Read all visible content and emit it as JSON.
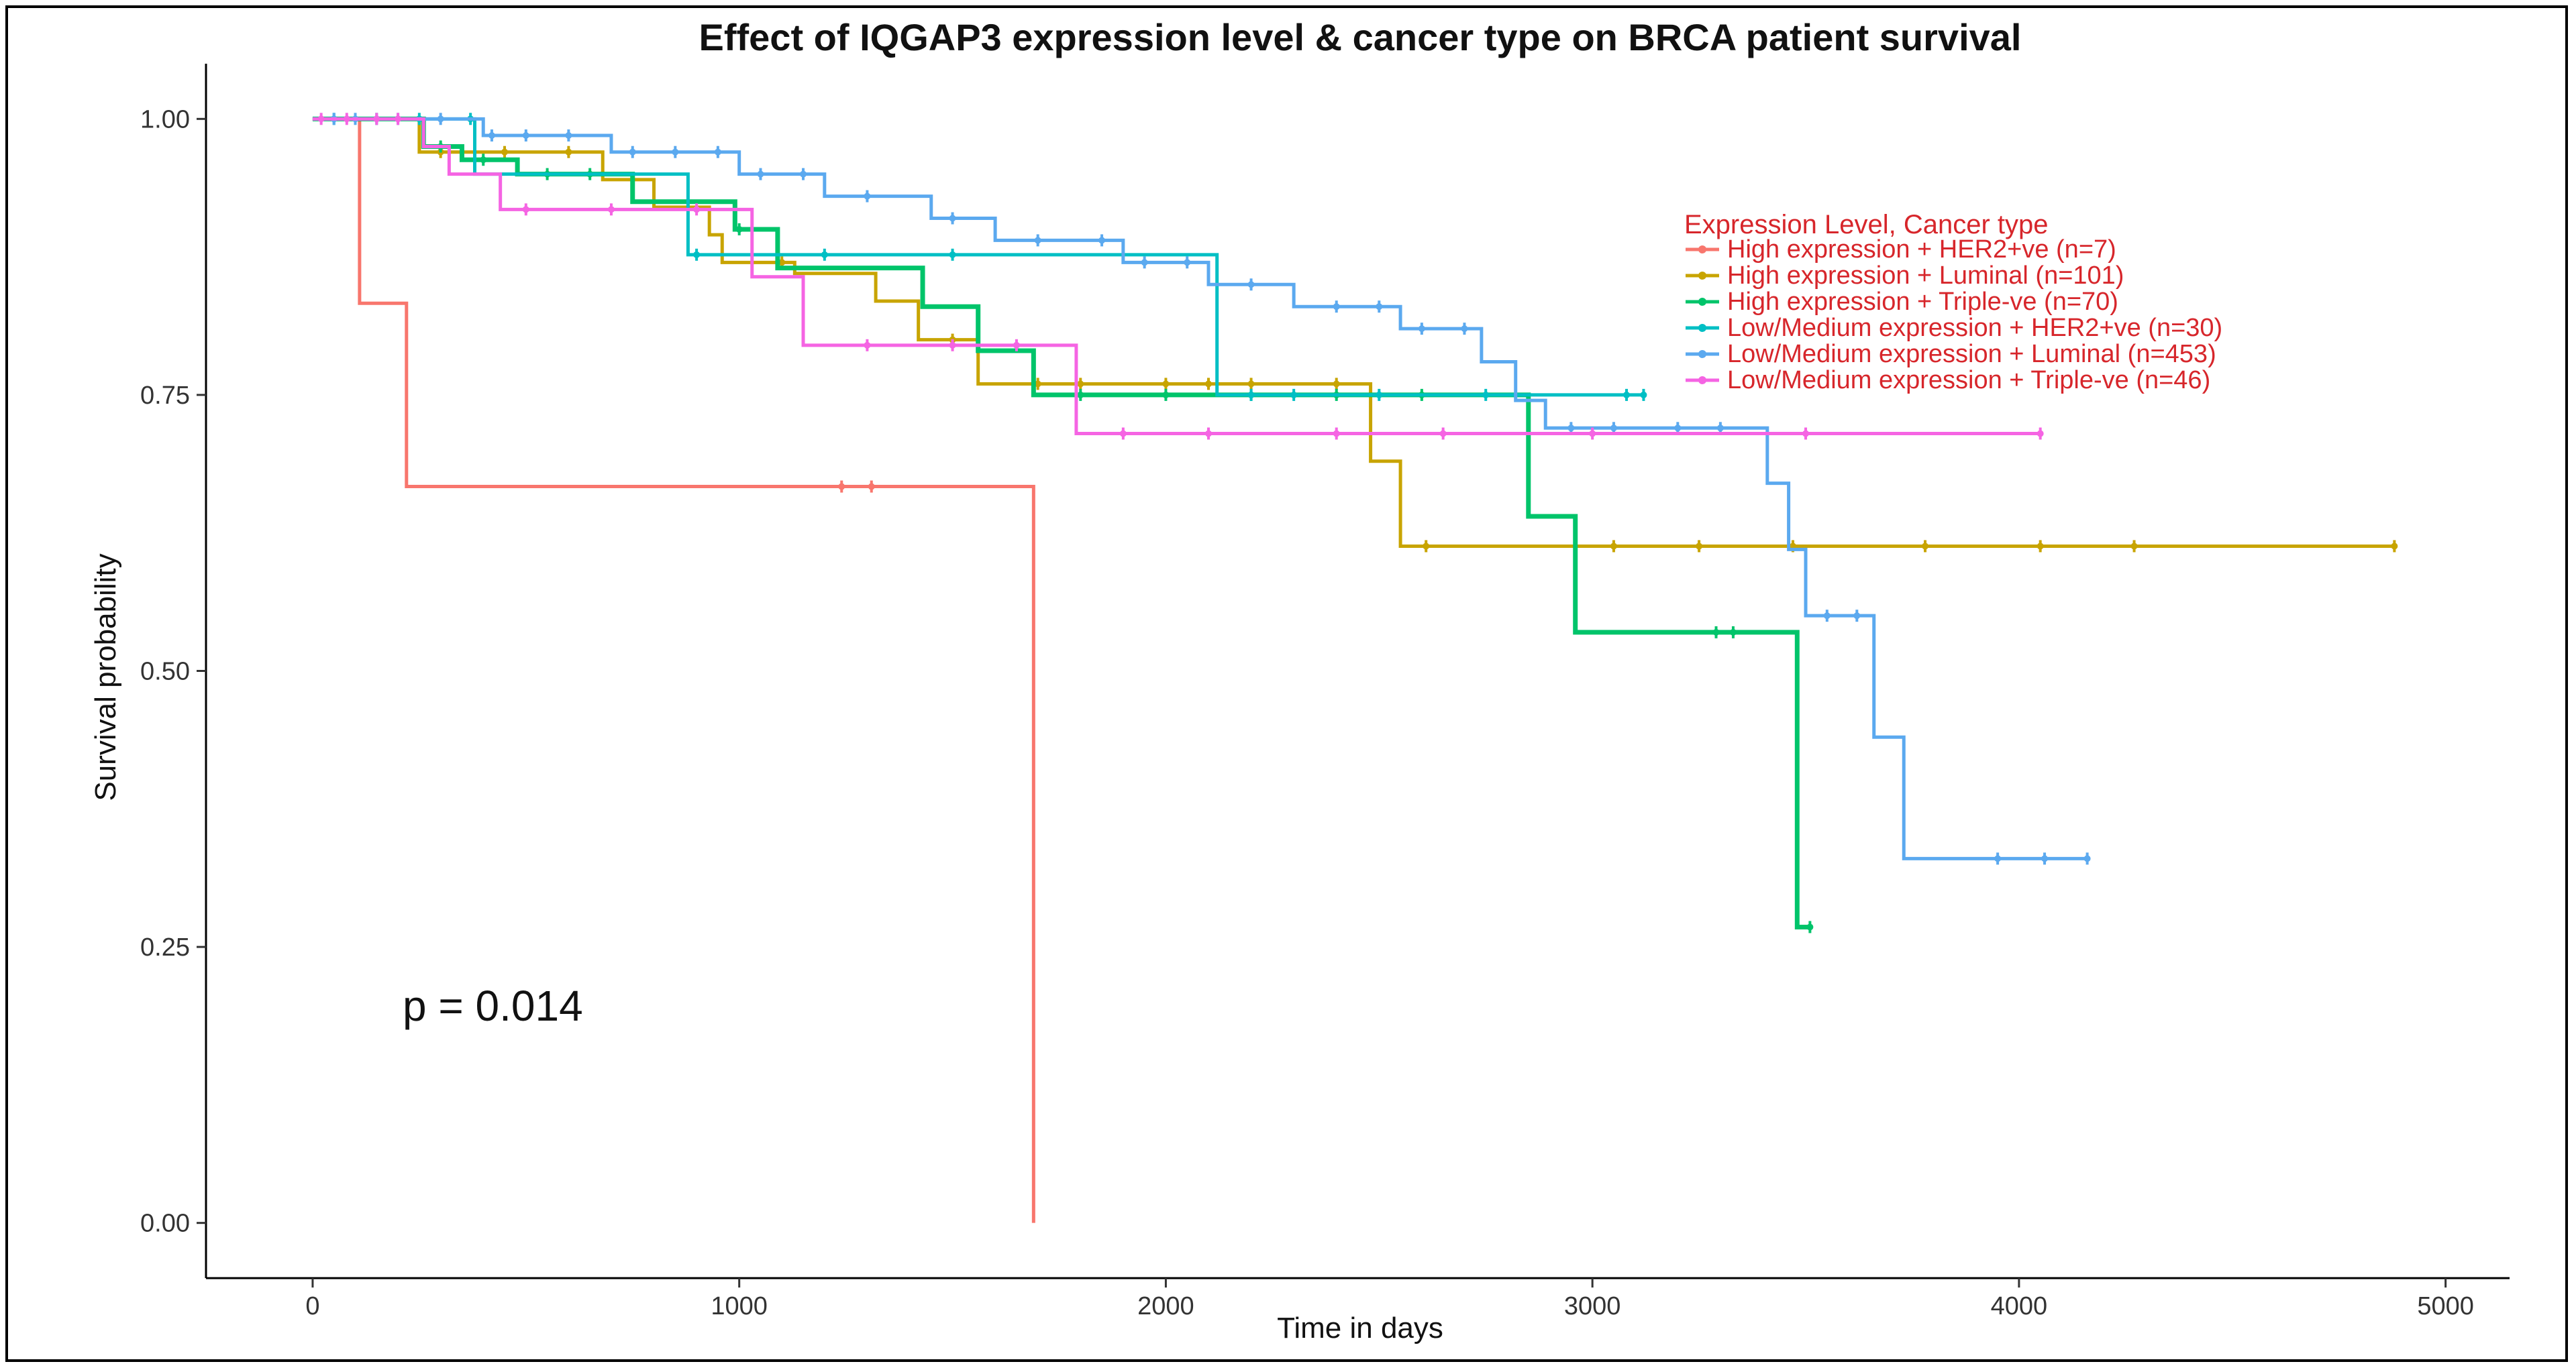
{
  "chart_data": {
    "type": "line",
    "title": "Effect of IQGAP3 expression level & cancer type on BRCA patient survival",
    "xlabel": "Time in days",
    "ylabel": "Survival probability",
    "xlim": [
      -250,
      5150
    ],
    "ylim": [
      -0.05,
      1.05
    ],
    "x_ticks": [
      0,
      1000,
      2000,
      3000,
      4000,
      5000
    ],
    "x_tick_labels": [
      "0",
      "1000",
      "2000",
      "3000",
      "4000",
      "5000"
    ],
    "y_ticks": [
      0,
      0.25,
      0.5,
      0.75,
      1.0
    ],
    "y_tick_labels": [
      "0.00",
      "0.25",
      "0.50",
      "0.75",
      "1.00"
    ],
    "p_value_text": "p = 0.014",
    "legend_title": "Expression Level, Cancer type",
    "series": [
      {
        "name": "High expression + HER2+ve (n=7)",
        "color": "#f8766d",
        "steps": [
          [
            0,
            1.0
          ],
          [
            110,
            0.833
          ],
          [
            220,
            0.667
          ],
          [
            1690,
            0.0
          ]
        ],
        "end": 1690,
        "censors": [
          1240,
          1310
        ]
      },
      {
        "name": "High expression + Luminal (n=101)",
        "color": "#c8a400",
        "steps": [
          [
            0,
            1.0
          ],
          [
            250,
            0.97
          ],
          [
            680,
            0.945
          ],
          [
            800,
            0.92
          ],
          [
            930,
            0.895
          ],
          [
            960,
            0.87
          ],
          [
            1130,
            0.86
          ],
          [
            1320,
            0.835
          ],
          [
            1420,
            0.8
          ],
          [
            1560,
            0.76
          ],
          [
            2480,
            0.69
          ],
          [
            2550,
            0.613
          ]
        ],
        "end": 4880,
        "censors": [
          300,
          450,
          600,
          1100,
          1500,
          1700,
          1800,
          2000,
          2100,
          2200,
          2400,
          2610,
          3050,
          3250,
          3470,
          3780,
          4050,
          4270,
          4880
        ]
      },
      {
        "name": "High expression + Triple-ve (n=70)",
        "color": "#00c46a",
        "steps": [
          [
            0,
            1.0
          ],
          [
            260,
            0.975
          ],
          [
            350,
            0.963
          ],
          [
            480,
            0.95
          ],
          [
            750,
            0.925
          ],
          [
            990,
            0.9
          ],
          [
            1090,
            0.865
          ],
          [
            1430,
            0.83
          ],
          [
            1560,
            0.79
          ],
          [
            1690,
            0.75
          ],
          [
            2850,
            0.64
          ],
          [
            2960,
            0.535
          ],
          [
            3480,
            0.268
          ]
        ],
        "end": 3510,
        "censors": [
          300,
          400,
          550,
          650,
          1000,
          1800,
          2000,
          2200,
          2400,
          2600,
          3290,
          3330,
          3510
        ]
      },
      {
        "name": "Low/Medium expression + HER2+ve (n=30)",
        "color": "#00bfc4",
        "steps": [
          [
            0,
            1.0
          ],
          [
            380,
            0.95
          ],
          [
            880,
            0.877
          ],
          [
            2120,
            0.75
          ]
        ],
        "end": 3120,
        "censors": [
          50,
          150,
          250,
          370,
          900,
          1200,
          1500,
          2200,
          2300,
          2500,
          2750,
          3080,
          3120
        ]
      },
      {
        "name": "Low/Medium expression + Luminal (n=453)",
        "color": "#5ba9ef",
        "steps": [
          [
            0,
            1.0
          ],
          [
            400,
            0.985
          ],
          [
            700,
            0.97
          ],
          [
            1000,
            0.95
          ],
          [
            1200,
            0.93
          ],
          [
            1450,
            0.91
          ],
          [
            1600,
            0.89
          ],
          [
            1900,
            0.87
          ],
          [
            2100,
            0.85
          ],
          [
            2300,
            0.83
          ],
          [
            2550,
            0.81
          ],
          [
            2740,
            0.78
          ],
          [
            2820,
            0.745
          ],
          [
            2890,
            0.72
          ],
          [
            3410,
            0.67
          ],
          [
            3460,
            0.61
          ],
          [
            3500,
            0.55
          ],
          [
            3660,
            0.44
          ],
          [
            3730,
            0.33
          ]
        ],
        "end": 4160,
        "censors": [
          50,
          100,
          200,
          300,
          420,
          500,
          600,
          750,
          850,
          950,
          1050,
          1150,
          1300,
          1500,
          1700,
          1850,
          1950,
          2050,
          2200,
          2400,
          2500,
          2600,
          2700,
          2950,
          3050,
          3200,
          3300,
          3550,
          3620,
          3950,
          4060,
          4160
        ]
      },
      {
        "name": "Low/Medium expression + Triple-ve (n=46)",
        "color": "#f564e3",
        "steps": [
          [
            0,
            1.0
          ],
          [
            260,
            0.975
          ],
          [
            320,
            0.95
          ],
          [
            440,
            0.918
          ],
          [
            1030,
            0.857
          ],
          [
            1150,
            0.795
          ],
          [
            1790,
            0.715
          ]
        ],
        "end": 4050,
        "censors": [
          20,
          80,
          150,
          200,
          500,
          700,
          900,
          1300,
          1500,
          1650,
          1900,
          2100,
          2400,
          2650,
          3000,
          3500,
          4050
        ]
      }
    ]
  }
}
